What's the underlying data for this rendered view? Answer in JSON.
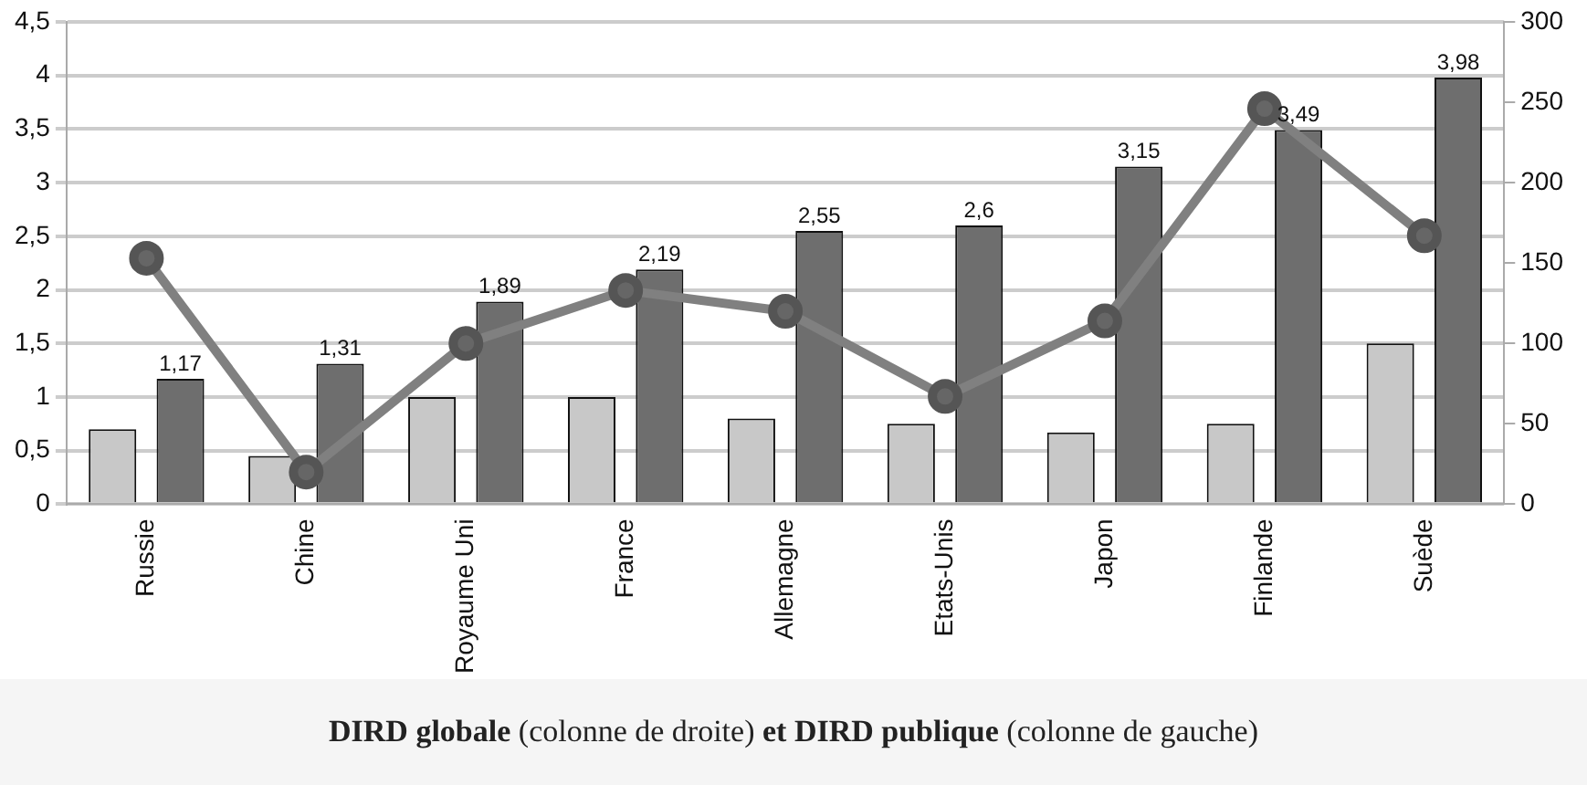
{
  "chart_data": {
    "type": "bar",
    "categories": [
      "Russie",
      "Chine",
      "Royaume Uni",
      "France",
      "Allemagne",
      "Etats-Unis",
      "Japon",
      "Finlande",
      "Suède"
    ],
    "series": [
      {
        "color": "#c8c8c8",
        "values": [
          0.7,
          0.45,
          1.0,
          1.0,
          0.8,
          0.75,
          0.67,
          0.75,
          1.5
        ]
      },
      {
        "color": "#6e6e6e",
        "values": [
          1.17,
          1.31,
          1.89,
          2.19,
          2.55,
          2.6,
          3.15,
          3.49,
          3.98
        ],
        "value_labels": [
          "1,17",
          "1,31",
          "1,89",
          "2,19",
          "2,55",
          "2,6",
          "3,15",
          "3,49",
          "3,98"
        ]
      },
      {
        "type": "line",
        "axis": "y2",
        "color": "#808080",
        "marker": "circle",
        "values": [
          153,
          20,
          100,
          133,
          120,
          67,
          114,
          246,
          167
        ]
      }
    ],
    "ylim": [
      0,
      4.5
    ],
    "yticks": [
      0,
      {
        "value": 0.5,
        "label": "0,5"
      },
      1,
      {
        "value": 1.5,
        "label": "1,5"
      },
      2,
      {
        "value": 2.5,
        "label": "2,5"
      },
      3,
      {
        "value": 3.5,
        "label": "3,5"
      },
      4,
      {
        "value": 4.5,
        "label": "4,5"
      }
    ],
    "y2lim": [
      0,
      300
    ],
    "y2ticks": [
      0,
      50,
      100,
      150,
      200,
      250,
      300
    ],
    "grid": "y",
    "legend": false,
    "annotations": [
      "DIRD globale",
      "(colonne de droite)",
      "et DIRD publique",
      "(colonne de gauche)"
    ]
  }
}
